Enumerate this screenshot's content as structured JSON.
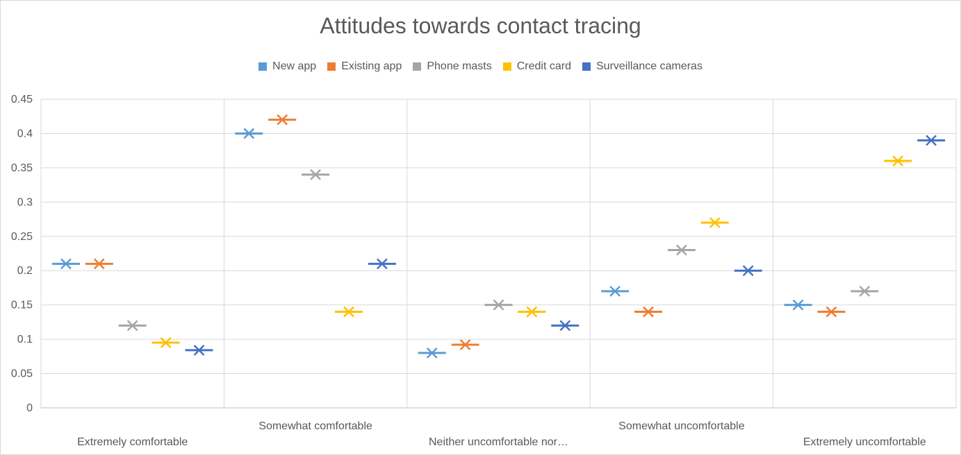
{
  "chart_data": {
    "type": "scatter",
    "title": "Attitudes towards contact tracing",
    "xlabel": "",
    "ylabel": "",
    "ylim": [
      0,
      0.45
    ],
    "yticks": [
      "0",
      "0.05",
      "0.1",
      "0.15",
      "0.2",
      "0.25",
      "0.3",
      "0.35",
      "0.4",
      "0.45"
    ],
    "grid": true,
    "legend_position": "top",
    "categories": [
      "Extremely comfortable",
      "Somewhat comfortable",
      "Neither uncomfortable nor…",
      "Somewhat uncomfortable",
      "Extremely uncomfortable"
    ],
    "series": [
      {
        "name": "New app",
        "color": "#5B9BD5",
        "values": [
          0.21,
          0.4,
          0.08,
          0.17,
          0.15
        ]
      },
      {
        "name": "Existing app",
        "color": "#ED7D31",
        "values": [
          0.21,
          0.42,
          0.092,
          0.14,
          0.14
        ]
      },
      {
        "name": "Phone masts",
        "color": "#A5A5A5",
        "values": [
          0.12,
          0.34,
          0.15,
          0.23,
          0.17
        ]
      },
      {
        "name": "Credit card",
        "color": "#FFC000",
        "values": [
          0.095,
          0.14,
          0.14,
          0.27,
          0.36
        ]
      },
      {
        "name": "Surveillance cameras",
        "color": "#4472C4",
        "values": [
          0.084,
          0.21,
          0.12,
          0.2,
          0.39
        ]
      }
    ]
  }
}
